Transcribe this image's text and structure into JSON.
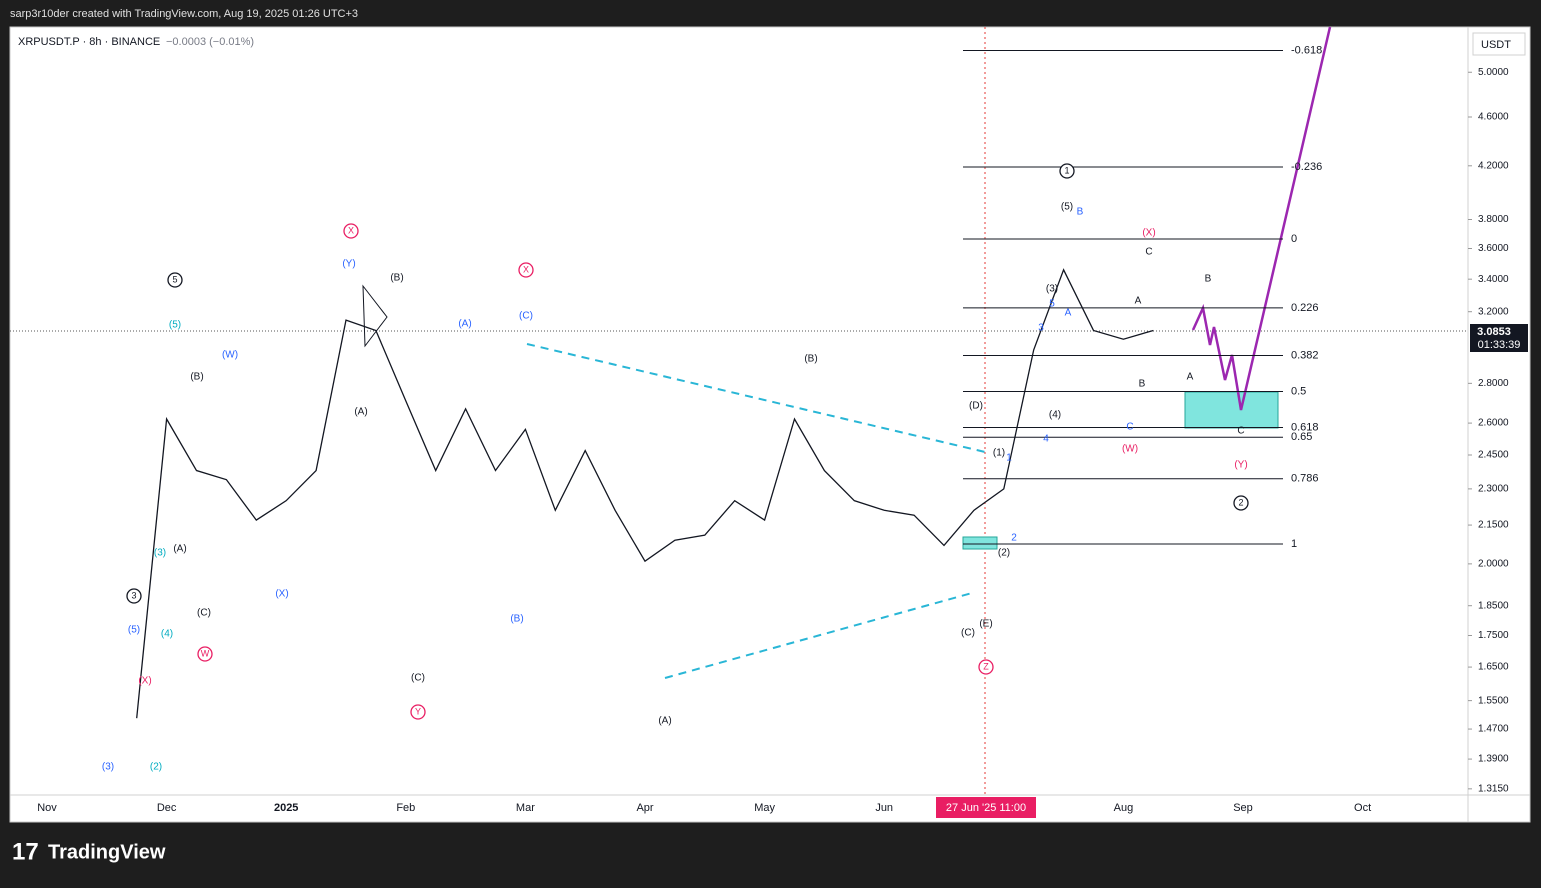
{
  "header": "sarp3r10der created with TradingView.com, Aug 19, 2025 01:26 UTC+3",
  "chart_data": {
    "type": "line",
    "symbol": "XRPUSDT.P · 8h · BINANCE",
    "change": "−0.0003 (−0.01%)",
    "currency": "USDT",
    "log_scale": true,
    "color": "#131722",
    "categories": [
      "Nov",
      null,
      null,
      null,
      "Dec",
      null,
      null,
      null,
      "2025",
      null,
      null,
      null,
      "Feb",
      null,
      null,
      null,
      "Mar",
      null,
      null,
      null,
      "Apr",
      null,
      null,
      null,
      "May",
      null,
      null,
      null,
      "Jun",
      null,
      null,
      null,
      null,
      null,
      null,
      null,
      "Aug",
      null,
      null,
      null,
      "Sep",
      null,
      null,
      null,
      "Oct",
      null,
      null,
      null
    ],
    "values": [
      null,
      null,
      null,
      1.5,
      2.62,
      2.38,
      2.34,
      2.17,
      2.25,
      2.38,
      3.15,
      3.09,
      2.71,
      2.38,
      2.67,
      2.38,
      2.57,
      2.21,
      2.47,
      2.21,
      2.01,
      2.09,
      2.11,
      2.25,
      2.17,
      2.62,
      2.38,
      2.25,
      2.21,
      2.19,
      2.07,
      2.21,
      2.3,
      2.98,
      3.46,
      3.09,
      3.04,
      3.09,
      null,
      null,
      null,
      null,
      null,
      null,
      null,
      null,
      null,
      null
    ],
    "ylim": [
      1.3,
      5.44
    ],
    "yticks": [
      {
        "value": 5.0,
        "label": "5.0000"
      },
      {
        "value": 4.6,
        "label": "4.6000"
      },
      {
        "value": 4.2,
        "label": "4.2000"
      },
      {
        "value": 3.8,
        "label": "3.8000"
      },
      {
        "value": 3.6,
        "label": "3.6000"
      },
      {
        "value": 3.4,
        "label": "3.4000"
      },
      {
        "value": 3.2,
        "label": "3.2000"
      },
      {
        "value": 2.8,
        "label": "2.8000"
      },
      {
        "value": 2.6,
        "label": "2.6000"
      },
      {
        "value": 2.45,
        "label": "2.4500"
      },
      {
        "value": 2.3,
        "label": "2.3000"
      },
      {
        "value": 2.15,
        "label": "2.1500"
      },
      {
        "value": 2.0,
        "label": "2.0000"
      },
      {
        "value": 1.85,
        "label": "1.8500"
      },
      {
        "value": 1.75,
        "label": "1.7500"
      },
      {
        "value": 1.65,
        "label": "1.6500"
      },
      {
        "value": 1.55,
        "label": "1.5500"
      },
      {
        "value": 1.47,
        "label": "1.4700"
      },
      {
        "value": 1.39,
        "label": "1.3900"
      },
      {
        "value": 1.315,
        "label": "1.3150"
      }
    ],
    "last_price": "3.0853",
    "countdown": "01:33:39",
    "crosshair_label": "27 Jun '25  11:00",
    "fib_levels": [
      -0.618,
      -0.236,
      0,
      0.226,
      0.382,
      0.5,
      0.618,
      0.65,
      0.786,
      1
    ],
    "annotations": [
      "5",
      "3",
      "1",
      "2",
      "X",
      "X",
      "W",
      "Y",
      "Z",
      "(B)",
      "(A)",
      "(C)",
      "(B)",
      "(A)",
      "(C)",
      "(B)",
      "(A)",
      "(C)",
      "(E)",
      "(D)",
      "(1)",
      "(2)",
      "(3)",
      "(4)",
      "(5)",
      "A",
      "B",
      "C",
      "B",
      "A",
      "C",
      "(Y)",
      "(W)",
      "(X)",
      "(A)",
      "(C)",
      "(B)",
      "(3)",
      "(5)",
      "B",
      "5",
      "A",
      "3",
      "4",
      "1",
      "2",
      "C",
      "(5)",
      "(3)",
      "(4)",
      "(2)",
      "(X)",
      "(X)",
      "(W)",
      "(Y)"
    ]
  },
  "footer": {
    "brand": "TradingView"
  }
}
